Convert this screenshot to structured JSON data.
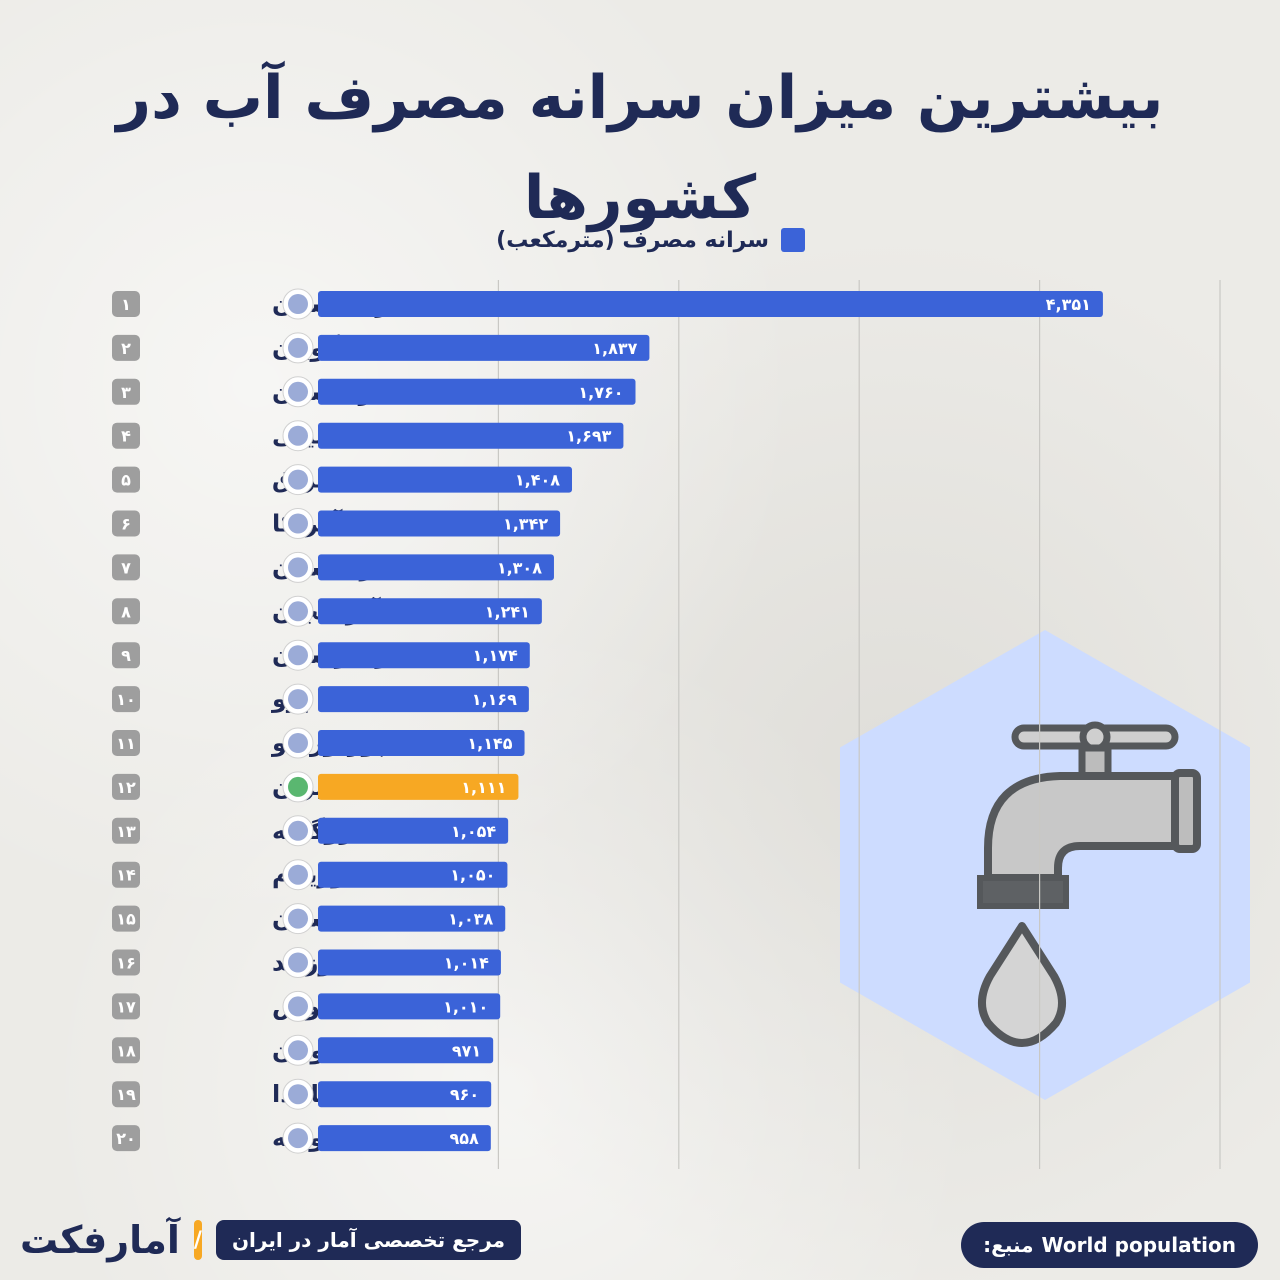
{
  "title": "بیشترین میزان سرانه مصرف آب در کشورها",
  "legend_label": "سرانه مصرف (مترمکعب)",
  "footer": {
    "logo": "آمارفکت",
    "tagline": "مرجع تخصصی آمار در ایران",
    "source_prefix": "منبع:",
    "source_name": "World population"
  },
  "colors": {
    "bar": "#3b63d8",
    "highlight": "#f7a823",
    "rank_badge": "#9e9e9e",
    "text": "#1f2a56",
    "hexagon": "#cddcff"
  },
  "icons": [
    "faucet-icon",
    "water-drop-icon",
    "flag-icon"
  ],
  "chart_data": {
    "type": "bar",
    "orientation": "horizontal",
    "title": "بیشترین میزان سرانه مصرف آب در کشورها",
    "legend": [
      {
        "name": "سرانه مصرف (مترمکعب)",
        "color": "#3b63d8"
      }
    ],
    "grid": true,
    "xlim": [
      0,
      5000
    ],
    "highlight_index": 11,
    "ranks": [
      "۱",
      "۲",
      "۳",
      "۴",
      "۵",
      "۶",
      "۷",
      "۸",
      "۹",
      "۱۰",
      "۱۱",
      "۱۲",
      "۱۳",
      "۱۴",
      "۱۵",
      "۱۶",
      "۱۷",
      "۱۸",
      "۱۹",
      "۲۰"
    ],
    "categories": [
      "ترکمنستان",
      "گویان",
      "ازبکستان",
      "شیلی",
      "عراق",
      "آمریکا",
      "قزاقستان",
      "آذربایجان",
      "قرقیزستان",
      "پرو",
      "پورتوریکو",
      "ایران",
      "اروگوئه",
      "سورینام",
      "تاجیکستان",
      "نیوزلند",
      "لائوس",
      "یونان",
      "کانادا",
      "سوریه"
    ],
    "values": [
      4351,
      1837,
      1760,
      1693,
      1408,
      1342,
      1308,
      1241,
      1174,
      1169,
      1145,
      1111,
      1054,
      1050,
      1038,
      1014,
      1010,
      971,
      960,
      958
    ],
    "value_labels": [
      "۴,۳۵۱",
      "۱,۸۳۷",
      "۱,۷۶۰",
      "۱,۶۹۳",
      "۱,۴۰۸",
      "۱,۳۴۲",
      "۱,۳۰۸",
      "۱,۲۴۱",
      "۱,۱۷۴",
      "۱,۱۶۹",
      "۱,۱۴۵",
      "۱,۱۱۱",
      "۱,۰۵۴",
      "۱,۰۵۰",
      "۱,۰۳۸",
      "۱,۰۱۴",
      "۱,۰۱۰",
      "۹۷۱",
      "۹۶۰",
      "۹۵۸"
    ]
  }
}
